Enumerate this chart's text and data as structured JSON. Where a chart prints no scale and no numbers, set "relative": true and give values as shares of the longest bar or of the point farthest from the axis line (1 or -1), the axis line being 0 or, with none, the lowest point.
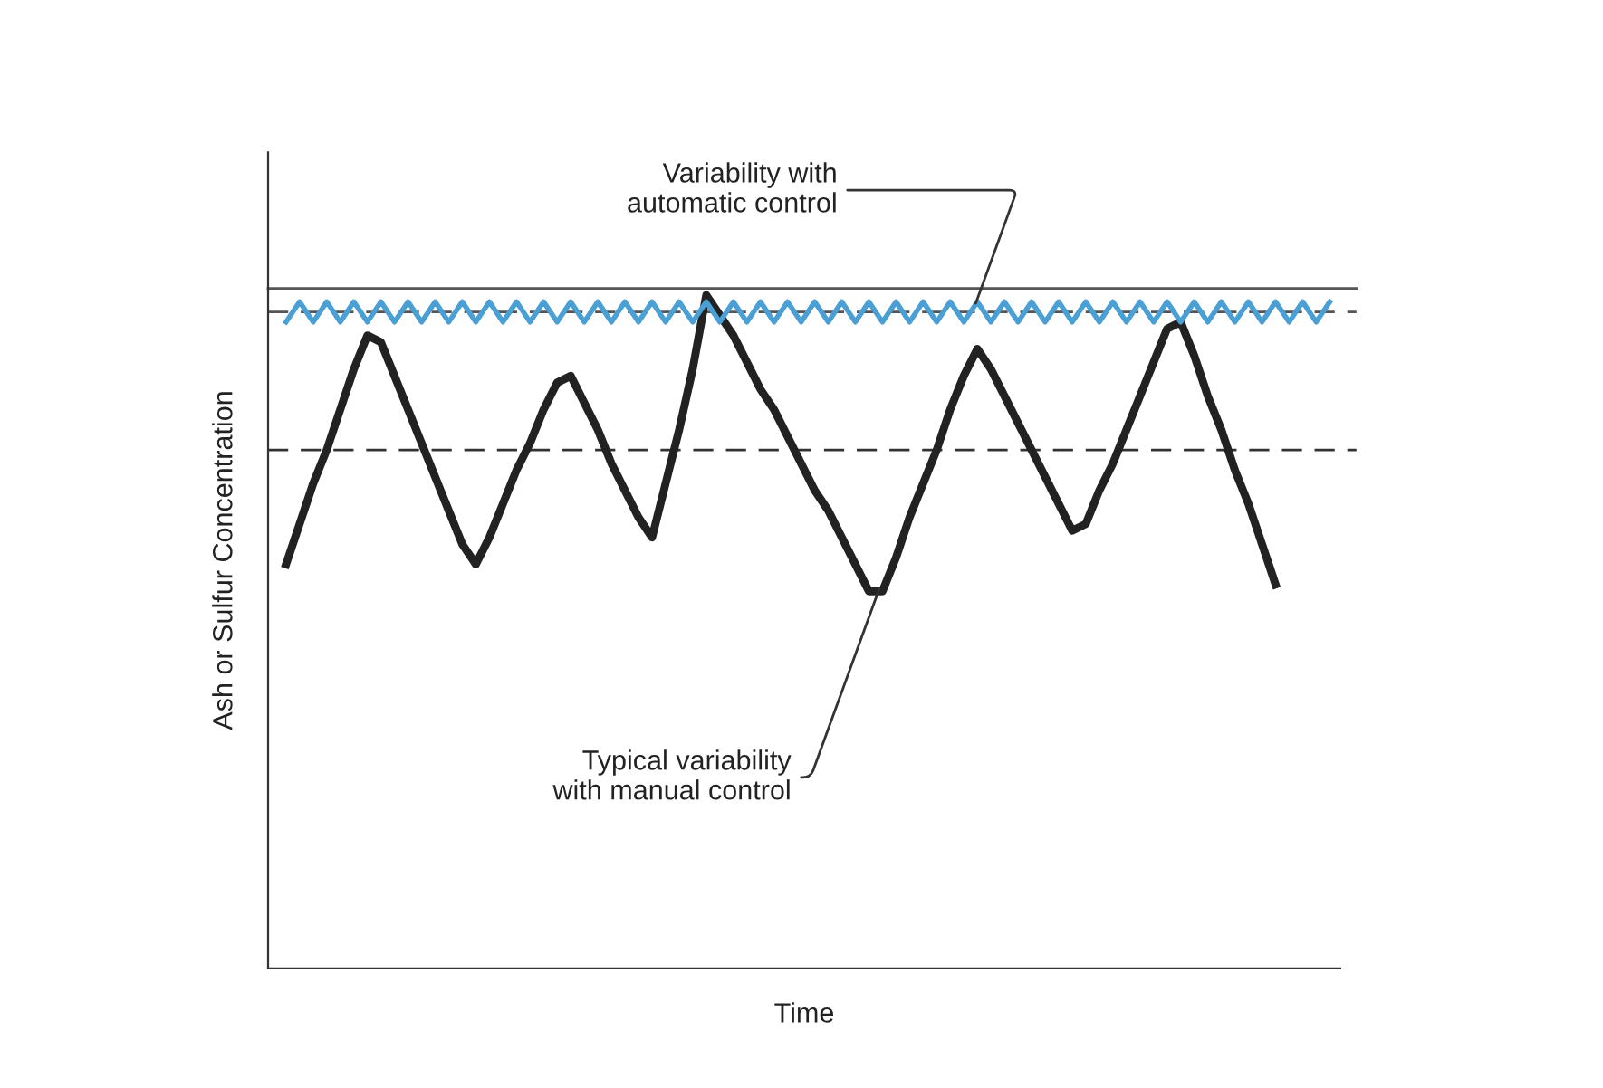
{
  "chart_data": {
    "type": "line",
    "relative": true,
    "xlabel": "Time",
    "ylabel": "Ash or Sulfur Concentration",
    "line_style": "solid",
    "categories": [
      null,
      null,
      null,
      null,
      null,
      null,
      null,
      null,
      null,
      null,
      null,
      null,
      null,
      null,
      null,
      null,
      null,
      null,
      null,
      null,
      null,
      null,
      null,
      null,
      null,
      null,
      null,
      null,
      null,
      null,
      null,
      null,
      null,
      null,
      null,
      null,
      null,
      null,
      null,
      null,
      null,
      null,
      null,
      null,
      null,
      null,
      null,
      null,
      null,
      null,
      null,
      null,
      null,
      null,
      null,
      null,
      null,
      null,
      null,
      null,
      null,
      null,
      null,
      null,
      null,
      null,
      null,
      null,
      null,
      null,
      null,
      null,
      null,
      null,
      null,
      null,
      null,
      null
    ],
    "series": [
      {
        "color": "#222222",
        "values": [
          0.6,
          0.66,
          0.72,
          0.77,
          0.83,
          0.89,
          0.94,
          0.93,
          0.88,
          0.83,
          0.78,
          0.73,
          0.68,
          0.63,
          0.6,
          0.64,
          0.69,
          0.74,
          0.78,
          0.83,
          0.87,
          0.88,
          0.84,
          0.8,
          0.75,
          0.71,
          0.67,
          0.64,
          0.72,
          0.8,
          0.89,
          1.0,
          0.97,
          0.94,
          0.9,
          0.86,
          0.83,
          0.79,
          0.75,
          0.71,
          0.68,
          0.64,
          0.6,
          0.56,
          0.56,
          0.61,
          0.67,
          0.72,
          0.77,
          0.83,
          0.88,
          0.92,
          0.89,
          0.85,
          0.81,
          0.77,
          0.73,
          0.69,
          0.65,
          0.66,
          0.71,
          0.75,
          0.8,
          0.85,
          0.9,
          0.95,
          0.96,
          0.91,
          0.85,
          0.8,
          0.74,
          0.69,
          0.63,
          0.57,
          null,
          null,
          null,
          null
        ]
      },
      {
        "color": "#4a9fd4",
        "values": [
          0.96,
          0.99,
          0.96,
          0.99,
          0.96,
          0.99,
          0.96,
          0.99,
          0.96,
          0.99,
          0.96,
          0.99,
          0.96,
          0.99,
          0.96,
          0.99,
          0.96,
          0.99,
          0.96,
          0.99,
          0.96,
          0.99,
          0.96,
          0.99,
          0.96,
          0.99,
          0.96,
          0.99,
          0.96,
          0.99,
          0.96,
          0.99,
          0.96,
          0.99,
          0.96,
          0.99,
          0.96,
          0.99,
          0.96,
          0.99,
          0.96,
          0.99,
          0.96,
          0.99,
          0.96,
          0.99,
          0.96,
          0.99,
          0.96,
          0.99,
          0.96,
          0.99,
          0.96,
          0.99,
          0.96,
          0.99,
          0.96,
          0.99,
          0.96,
          0.99,
          0.96,
          0.99,
          0.96,
          0.99,
          0.96,
          0.99,
          0.96,
          0.99,
          0.96,
          0.99,
          0.96,
          0.99,
          0.96,
          0.99,
          0.96,
          0.99,
          0.96,
          0.99
        ]
      }
    ],
    "ref_lines": [
      {
        "axis": "y",
        "value": 1.01,
        "color": "#555555",
        "line_style": "solid"
      },
      {
        "axis": "y",
        "value": 0.975,
        "color": "#555555",
        "line_style": "dashed"
      },
      {
        "axis": "y",
        "value": 0.77,
        "color": "#333333",
        "line_style": "dashed"
      }
    ],
    "annotations": [
      "Variability with\nautomatic control",
      "Typical variability\nwith manual control"
    ]
  }
}
